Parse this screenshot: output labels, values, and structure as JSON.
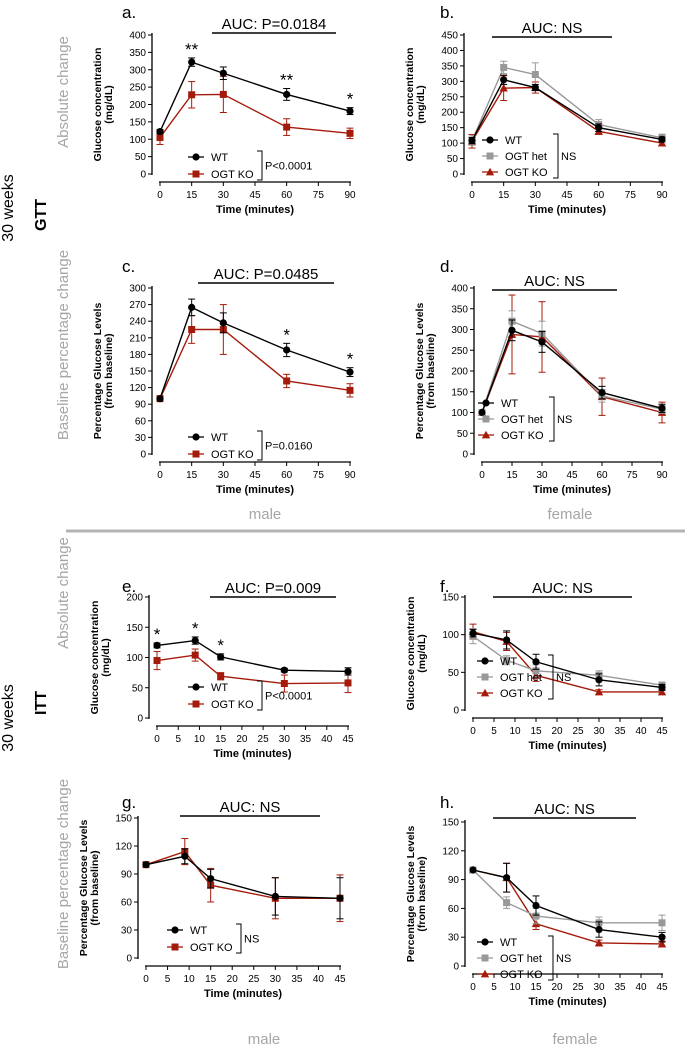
{
  "side_labels": {
    "gtt_weeks": "30 weeks",
    "gtt": "GTT",
    "itt_weeks": "30 weeks",
    "itt": "ITT",
    "absolute_change": "Absolute change",
    "baseline_change": "Baseline percentage change"
  },
  "sex_labels": {
    "gtt_male": "male",
    "gtt_female": "female",
    "itt_male": "male",
    "itt_female": "female"
  },
  "colors": {
    "wt": "#000000",
    "ogt_het": "#999999",
    "ogt_ko": "#a51b0b",
    "gray_text": "#a6a6a6",
    "divider": "#b3b3b3"
  },
  "chart_data": [
    {
      "id": "a",
      "panel_label": "a.",
      "type": "line",
      "xlabel": "Time (minutes)",
      "ylabel": [
        "Glucose concentration",
        "(mg/dL)"
      ],
      "xticks": [
        0,
        15,
        30,
        45,
        60,
        75,
        90
      ],
      "xlim": [
        0,
        90
      ],
      "yticks": [
        0,
        50,
        100,
        150,
        200,
        250,
        300,
        350,
        400
      ],
      "ylim": [
        0,
        400
      ],
      "auc": "AUC: P=0.0184",
      "series": [
        {
          "name": "WT",
          "key": "wt",
          "marker": "circle",
          "x": [
            0,
            15,
            30,
            60,
            90
          ],
          "y": [
            122,
            322,
            290,
            229,
            181
          ],
          "err": [
            6,
            12,
            18,
            17,
            10
          ]
        },
        {
          "name": "OGT KO",
          "key": "ogt_ko",
          "marker": "square",
          "x": [
            0,
            15,
            30,
            60,
            90
          ],
          "y": [
            105,
            228,
            229,
            135,
            117
          ],
          "err": [
            20,
            38,
            52,
            24,
            15
          ]
        }
      ],
      "stars": [
        {
          "x": 15,
          "text": "**"
        },
        {
          "x": 60,
          "text": "**"
        },
        {
          "x": 90,
          "text": "*"
        }
      ],
      "legend_stat": "P<0.0001"
    },
    {
      "id": "b",
      "panel_label": "b.",
      "type": "line",
      "xlabel": "Time (minutes)",
      "ylabel": [
        "Glucose concentration",
        "(mg/dL)"
      ],
      "xticks": [
        0,
        15,
        30,
        45,
        60,
        75,
        90
      ],
      "xlim": [
        0,
        90
      ],
      "yticks": [
        0,
        50,
        100,
        150,
        200,
        250,
        300,
        350,
        400,
        450
      ],
      "ylim": [
        0,
        450
      ],
      "auc": "AUC: NS",
      "series": [
        {
          "name": "WT",
          "key": "wt",
          "marker": "circle",
          "x": [
            0,
            15,
            30,
            60,
            90
          ],
          "y": [
            108,
            305,
            280,
            150,
            112
          ],
          "err": [
            10,
            15,
            10,
            12,
            8
          ]
        },
        {
          "name": "OGT het",
          "key": "ogt_het",
          "marker": "square",
          "x": [
            0,
            15,
            30,
            60,
            90
          ],
          "y": [
            108,
            345,
            322,
            160,
            117
          ],
          "err": [
            15,
            20,
            38,
            16,
            12
          ]
        },
        {
          "name": "OGT KO",
          "key": "ogt_ko",
          "marker": "triangle",
          "x": [
            0,
            15,
            30,
            60,
            90
          ],
          "y": [
            106,
            278,
            280,
            138,
            100
          ],
          "err": [
            22,
            40,
            18,
            10,
            8
          ]
        }
      ],
      "stars": [],
      "legend_stat": "NS"
    },
    {
      "id": "c",
      "panel_label": "c.",
      "type": "line",
      "xlabel": "Time (minutes)",
      "ylabel": [
        "Percentage Glucose Levels",
        "(from baseline)"
      ],
      "xticks": [
        0,
        15,
        30,
        45,
        60,
        75,
        90
      ],
      "xlim": [
        0,
        90
      ],
      "yticks": [
        0,
        30,
        60,
        90,
        120,
        150,
        180,
        210,
        240,
        270,
        300
      ],
      "ylim": [
        0,
        300
      ],
      "auc": "AUC: P=0.0485",
      "series": [
        {
          "name": "WT",
          "key": "wt",
          "marker": "circle",
          "x": [
            0,
            15,
            30,
            60,
            90
          ],
          "y": [
            100,
            265,
            237,
            188,
            148
          ],
          "err": [
            0,
            15,
            18,
            12,
            8
          ]
        },
        {
          "name": "OGT KO",
          "key": "ogt_ko",
          "marker": "square",
          "x": [
            0,
            15,
            30,
            60,
            90
          ],
          "y": [
            100,
            225,
            225,
            132,
            115
          ],
          "err": [
            0,
            25,
            45,
            12,
            12
          ]
        }
      ],
      "stars": [
        {
          "x": 60,
          "text": "*"
        },
        {
          "x": 90,
          "text": "*"
        }
      ],
      "legend_stat": "P=0.0160"
    },
    {
      "id": "d",
      "panel_label": "d.",
      "type": "line",
      "xlabel": "Time (minutes)",
      "ylabel": [
        "Percentage Glucose Levels",
        "(from baseline)"
      ],
      "xticks": [
        0,
        15,
        30,
        45,
        60,
        75,
        90
      ],
      "xlim": [
        0,
        90
      ],
      "yticks": [
        0,
        50,
        100,
        150,
        200,
        250,
        300,
        350,
        400
      ],
      "ylim": [
        0,
        400
      ],
      "auc": "AUC: NS",
      "series": [
        {
          "name": "WT",
          "key": "wt",
          "marker": "circle",
          "x": [
            0,
            15,
            30,
            60,
            90
          ],
          "y": [
            100,
            298,
            270,
            148,
            110
          ],
          "err": [
            0,
            25,
            25,
            15,
            10
          ]
        },
        {
          "name": "OGT het",
          "key": "ogt_het",
          "marker": "square",
          "x": [
            0,
            15,
            30,
            60,
            90
          ],
          "y": [
            100,
            320,
            290,
            140,
            108
          ],
          "err": [
            0,
            25,
            30,
            15,
            10
          ]
        },
        {
          "name": "OGT KO",
          "key": "ogt_ko",
          "marker": "triangle",
          "x": [
            0,
            15,
            30,
            60,
            90
          ],
          "y": [
            100,
            288,
            282,
            138,
            100
          ],
          "err": [
            0,
            95,
            85,
            45,
            25
          ]
        }
      ],
      "stars": [],
      "legend_stat": "NS"
    },
    {
      "id": "e",
      "panel_label": "e.",
      "type": "line",
      "xlabel": "Time (minutes)",
      "ylabel": [
        "Glucose concentration",
        "(mg/dL)"
      ],
      "xticks": [
        0,
        5,
        10,
        15,
        20,
        25,
        30,
        35,
        40,
        45
      ],
      "xlim": [
        0,
        45
      ],
      "yticks": [
        0,
        50,
        100,
        150,
        200
      ],
      "ylim": [
        0,
        200
      ],
      "auc": "AUC: P=0.009",
      "series": [
        {
          "name": "WT",
          "key": "wt",
          "marker": "circle",
          "x": [
            0,
            9,
            15,
            30,
            45
          ],
          "y": [
            120,
            128,
            101,
            79,
            77
          ],
          "err": [
            4,
            6,
            5,
            3,
            6
          ]
        },
        {
          "name": "OGT KO",
          "key": "ogt_ko",
          "marker": "square",
          "x": [
            0,
            9,
            15,
            30,
            45
          ],
          "y": [
            95,
            104,
            69,
            57,
            58
          ],
          "err": [
            15,
            10,
            6,
            14,
            16
          ]
        }
      ],
      "stars": [
        {
          "x": 0,
          "text": "*"
        },
        {
          "x": 9,
          "text": "*"
        },
        {
          "x": 15,
          "text": "*"
        }
      ],
      "legend_stat": "P<0.0001"
    },
    {
      "id": "f",
      "panel_label": "f.",
      "type": "line",
      "xlabel": "Time (minutes)",
      "ylabel": [
        "Glucose concentration",
        "(mg/dL)"
      ],
      "xticks": [
        0,
        5,
        10,
        15,
        20,
        25,
        30,
        35,
        40,
        45
      ],
      "xlim": [
        0,
        45
      ],
      "yticks": [
        0,
        50,
        100,
        150
      ],
      "ylim": [
        0,
        150
      ],
      "auc": "AUC: NS",
      "series": [
        {
          "name": "WT",
          "key": "wt",
          "marker": "circle",
          "x": [
            0,
            8,
            15,
            30,
            45
          ],
          "y": [
            102,
            93,
            64,
            40,
            30
          ],
          "err": [
            5,
            12,
            10,
            8,
            4
          ]
        },
        {
          "name": "OGT het",
          "key": "ogt_het",
          "marker": "square",
          "x": [
            0,
            8,
            15,
            30,
            45
          ],
          "y": [
            98,
            66,
            52,
            46,
            33
          ],
          "err": [
            10,
            6,
            8,
            6,
            4
          ]
        },
        {
          "name": "OGT KO",
          "key": "ogt_ko",
          "marker": "triangle",
          "x": [
            0,
            8,
            15,
            30,
            45
          ],
          "y": [
            104,
            91,
            46,
            24,
            24
          ],
          "err": [
            10,
            12,
            8,
            3,
            3
          ]
        }
      ],
      "stars": [],
      "legend_stat": "NS"
    },
    {
      "id": "g",
      "panel_label": "g.",
      "type": "line",
      "xlabel": "Time (minutes)",
      "ylabel": [
        "Percentage Glucose Levels",
        "(from baseline)"
      ],
      "xticks": [
        0,
        5,
        10,
        15,
        20,
        25,
        30,
        35,
        40,
        45
      ],
      "xlim": [
        0,
        45
      ],
      "yticks": [
        0,
        30,
        60,
        90,
        120,
        150
      ],
      "ylim": [
        0,
        150
      ],
      "auc": "AUC: NS",
      "series": [
        {
          "name": "WT",
          "key": "wt",
          "marker": "circle",
          "x": [
            0,
            9,
            15,
            30,
            45
          ],
          "y": [
            100,
            109,
            85,
            66,
            64
          ],
          "err": [
            0,
            8,
            10,
            20,
            22
          ]
        },
        {
          "name": "OGT KO",
          "key": "ogt_ko",
          "marker": "square",
          "x": [
            0,
            9,
            15,
            30,
            45
          ],
          "y": [
            100,
            114,
            78,
            64,
            64
          ],
          "err": [
            0,
            14,
            18,
            22,
            25
          ]
        }
      ],
      "stars": [],
      "legend_stat": "NS"
    },
    {
      "id": "h",
      "panel_label": "h.",
      "type": "line",
      "xlabel": "Time (minutes)",
      "ylabel": [
        "Percentage Glucose Levels",
        "(from baseline)"
      ],
      "xticks": [
        0,
        5,
        10,
        15,
        20,
        25,
        30,
        35,
        40,
        45
      ],
      "xlim": [
        0,
        45
      ],
      "yticks": [
        0,
        30,
        60,
        90,
        120,
        150
      ],
      "ylim": [
        0,
        150
      ],
      "auc": "AUC: NS",
      "series": [
        {
          "name": "WT",
          "key": "wt",
          "marker": "circle",
          "x": [
            0,
            8,
            15,
            30,
            45
          ],
          "y": [
            100,
            92,
            63,
            38,
            30
          ],
          "err": [
            0,
            15,
            10,
            8,
            5
          ]
        },
        {
          "name": "OGT het",
          "key": "ogt_het",
          "marker": "square",
          "x": [
            0,
            8,
            15,
            30,
            45
          ],
          "y": [
            100,
            66,
            52,
            45,
            45
          ],
          "err": [
            0,
            6,
            8,
            6,
            8
          ]
        },
        {
          "name": "OGT KO",
          "key": "ogt_ko",
          "marker": "triangle",
          "x": [
            0,
            8,
            15,
            30,
            45
          ],
          "y": [
            100,
            92,
            44,
            24,
            23
          ],
          "err": [
            0,
            15,
            6,
            3,
            3
          ]
        }
      ],
      "stars": [],
      "legend_stat": "NS"
    }
  ]
}
